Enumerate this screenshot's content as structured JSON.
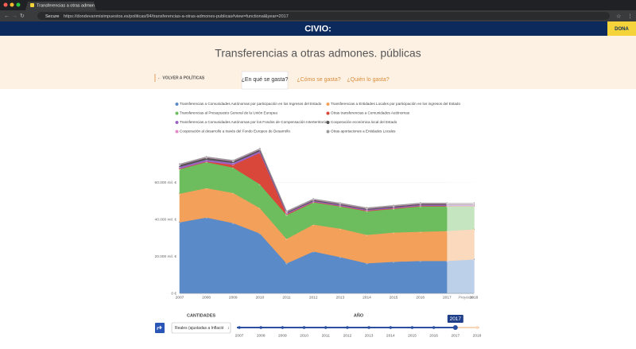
{
  "browser": {
    "tab_title": "Transferencias a otras admon",
    "secure": "Secure",
    "url": "https://dondevanmisimpuestos.es/politicas/94/transferencias-a-otras-admones-publicas#view=functional&year=2017"
  },
  "header": {
    "logo": "CIVIO:",
    "donate": "DONA"
  },
  "page": {
    "title": "Transferencias a otras admones. públicas",
    "back_link": "← VOLVER A POLÍTICAS",
    "tabs": [
      "¿En qué se gasta?",
      "¿Cómo se gasta?",
      "¿Quién lo gasta?"
    ]
  },
  "chart_data": {
    "type": "stacked-area",
    "categories": [
      "2007",
      "2008",
      "2009",
      "2010",
      "2011",
      "2012",
      "2013",
      "2014",
      "2015",
      "2016",
      "2017",
      "2018"
    ],
    "annotation": "Proyecto",
    "ylim": [
      0,
      80000
    ],
    "yticks": [
      {
        "value": 0,
        "label": "0 €"
      },
      {
        "value": 20000,
        "label": "20.000 mil. €"
      },
      {
        "value": 40000,
        "label": "40.000 mil. €"
      },
      {
        "value": 60000,
        "label": "60.000 mil. €"
      }
    ],
    "grid": true,
    "series": [
      {
        "name": "Transferencias a Comunidades Autónomas por participación en los Ingresos del Estado",
        "color": "#5b8ac8",
        "values": [
          38500,
          41100,
          38100,
          32500,
          16300,
          22700,
          19700,
          16300,
          17100,
          17600,
          17600,
          18400
        ]
      },
      {
        "name": "Transferencias a Entidades Locales por participación en los ingresos del Estado",
        "color": "#f2a05a",
        "values": [
          15500,
          15900,
          16300,
          13700,
          13200,
          14600,
          15400,
          15400,
          15900,
          15800,
          16200,
          16300
        ]
      },
      {
        "name": "Transferencias al Presupuesto General de la Unión Europea",
        "color": "#6dbd5f",
        "values": [
          13200,
          14100,
          13700,
          12900,
          12900,
          12000,
          12000,
          12800,
          12800,
          13700,
          13300,
          12400
        ]
      },
      {
        "name": "Otras transferencias a Comunidades Autónomas",
        "color": "#d9473b",
        "values": [
          300,
          300,
          1500,
          17000,
          500,
          300,
          300,
          300,
          300,
          300,
          300,
          300
        ]
      },
      {
        "name": "Transferencias a Comunidades Autónomas por los Fondos de Compensación Interterritorial",
        "color": "#9b64c4",
        "values": [
          1000,
          1000,
          1000,
          900,
          600,
          500,
          500,
          500,
          500,
          500,
          500,
          500
        ]
      },
      {
        "name": "Cooperación económica local del Estado",
        "color": "#555555",
        "values": [
          1000,
          1000,
          900,
          800,
          500,
          500,
          500,
          500,
          500,
          500,
          500,
          500
        ]
      },
      {
        "name": "Cooperación al desarrollo a través del Fondo Europeo de Desarrollo",
        "color": "#e58ac6",
        "values": [
          200,
          200,
          200,
          200,
          200,
          200,
          200,
          200,
          200,
          200,
          200,
          200
        ]
      },
      {
        "name": "Otras aportaciones a Entidades Locales",
        "color": "#9a9a9a",
        "values": [
          300,
          300,
          300,
          300,
          300,
          300,
          300,
          300,
          300,
          300,
          300,
          300
        ]
      }
    ]
  },
  "controls": {
    "amounts_label": "CANTIDADES",
    "amounts_select": "Reales (ajustadas a Inflació",
    "year_label": "AÑO",
    "selected_year": "2017",
    "years": [
      "2007",
      "2008",
      "2009",
      "2010",
      "2011",
      "2012",
      "2013",
      "2014",
      "2015",
      "2016",
      "2017",
      "2018"
    ]
  }
}
